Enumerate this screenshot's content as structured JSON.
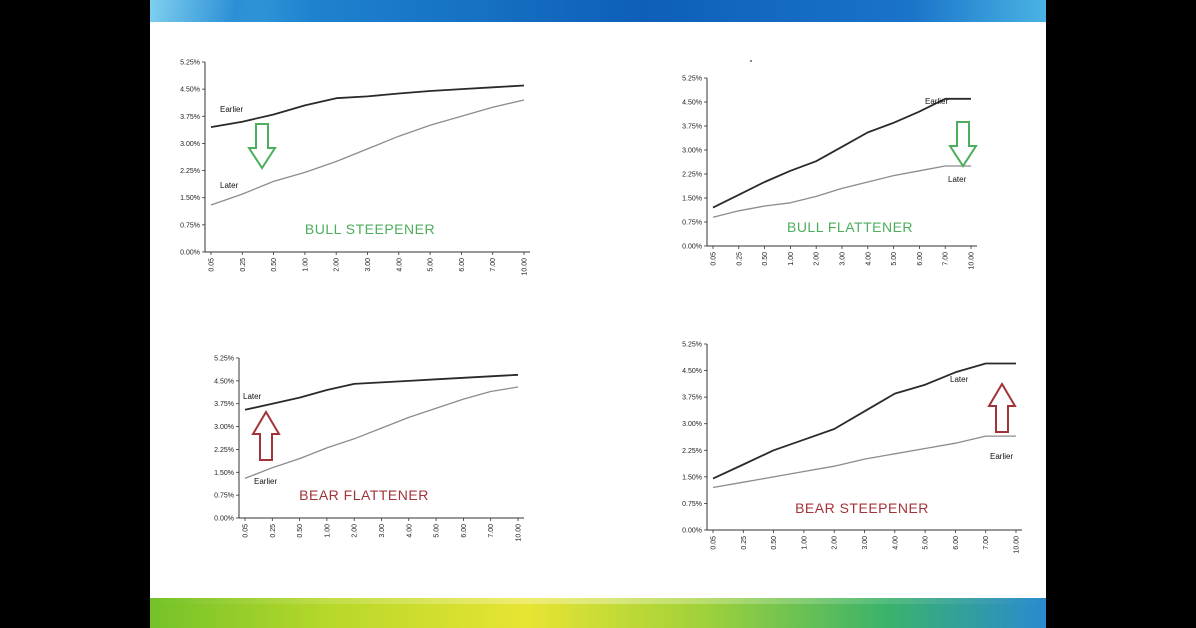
{
  "colors": {
    "bull": "#4cae5c",
    "bear": "#a3333a",
    "earlier_line": "#2a2a2a",
    "later_line": "#8c8c8c",
    "axis": "#333333"
  },
  "chart_data": [
    {
      "type": "line",
      "title": "BULL  STEEPENER",
      "categories": [
        "0.05",
        "0.25",
        "0.50",
        "1.00",
        "2.00",
        "3.00",
        "4.00",
        "5.00",
        "6.00",
        "7.00",
        "10.00"
      ],
      "y_ticks": [
        "0.00%",
        "0.75%",
        "1.50%",
        "2.25%",
        "3.00%",
        "3.75%",
        "4.50%",
        "5.25%"
      ],
      "ylim": [
        0,
        5.25
      ],
      "arrow": "down",
      "series": [
        {
          "name": "Earlier",
          "values": [
            3.45,
            3.6,
            3.8,
            4.05,
            4.25,
            4.3,
            4.38,
            4.45,
            4.5,
            4.55,
            4.6
          ]
        },
        {
          "name": "Later",
          "values": [
            1.3,
            1.6,
            1.95,
            2.2,
            2.5,
            2.85,
            3.2,
            3.5,
            3.75,
            4.0,
            4.2
          ]
        }
      ]
    },
    {
      "type": "line",
      "title": "BULL FLATTENER",
      "categories": [
        "0.05",
        "0.25",
        "0.50",
        "1.00",
        "2.00",
        "3.00",
        "4.00",
        "5.00",
        "6.00",
        "7.00",
        "10.00"
      ],
      "y_ticks": [
        "0.00%",
        "0.75%",
        "1.50%",
        "2.25%",
        "3.00%",
        "3.75%",
        "4.50%",
        "5.25%"
      ],
      "ylim": [
        0,
        5.25
      ],
      "arrow": "down",
      "series": [
        {
          "name": "Earlier",
          "values": [
            1.2,
            1.6,
            2.0,
            2.35,
            2.65,
            3.1,
            3.55,
            3.85,
            4.2,
            4.6,
            4.6
          ]
        },
        {
          "name": "Later",
          "values": [
            0.9,
            1.1,
            1.25,
            1.35,
            1.55,
            1.8,
            2.0,
            2.2,
            2.35,
            2.5,
            2.5
          ]
        }
      ]
    },
    {
      "type": "line",
      "title": "BEAR FLATTENER",
      "categories": [
        "0.05",
        "0.25",
        "0.50",
        "1.00",
        "2.00",
        "3.00",
        "4.00",
        "5.00",
        "6.00",
        "7.00",
        "10.00"
      ],
      "y_ticks": [
        "0.00%",
        "0.75%",
        "1.50%",
        "2.25%",
        "3.00%",
        "3.75%",
        "4.50%",
        "5.25%"
      ],
      "ylim": [
        0,
        5.25
      ],
      "arrow": "up",
      "series": [
        {
          "name": "Later",
          "values": [
            3.55,
            3.75,
            3.95,
            4.2,
            4.4,
            4.45,
            4.5,
            4.55,
            4.6,
            4.65,
            4.7
          ]
        },
        {
          "name": "Earlier",
          "values": [
            1.3,
            1.65,
            1.95,
            2.3,
            2.6,
            2.95,
            3.3,
            3.6,
            3.9,
            4.15,
            4.3
          ]
        }
      ]
    },
    {
      "type": "line",
      "title": "BEAR STEEPENER",
      "categories": [
        "0.05",
        "0.25",
        "0.50",
        "1.00",
        "2.00",
        "3.00",
        "4.00",
        "5.00",
        "6.00",
        "7.00",
        "10.00"
      ],
      "y_ticks": [
        "0.00%",
        "0.75%",
        "1.50%",
        "2.25%",
        "3.00%",
        "3.75%",
        "4.50%",
        "5.25%"
      ],
      "ylim": [
        0,
        5.25
      ],
      "arrow": "up",
      "series": [
        {
          "name": "Later",
          "values": [
            1.45,
            1.85,
            2.25,
            2.55,
            2.85,
            3.35,
            3.85,
            4.1,
            4.45,
            4.7,
            4.7
          ]
        },
        {
          "name": "Earlier",
          "values": [
            1.2,
            1.35,
            1.5,
            1.65,
            1.8,
            2.0,
            2.15,
            2.3,
            2.45,
            2.65,
            2.65
          ]
        }
      ]
    }
  ]
}
